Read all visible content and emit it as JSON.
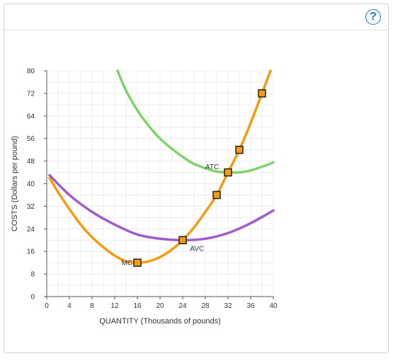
{
  "header": {
    "help_label": "?",
    "help_icon": "question-circle-icon"
  },
  "chart_data": {
    "type": "line",
    "xlabel": "QUANTITY (Thousands of pounds)",
    "ylabel": "COSTS (Dollars per pound)",
    "xlim": [
      0,
      40
    ],
    "ylim": [
      0,
      80
    ],
    "xticks": [
      0,
      4,
      8,
      12,
      16,
      20,
      24,
      28,
      32,
      36,
      40
    ],
    "yticks": [
      0,
      8,
      16,
      24,
      32,
      40,
      48,
      56,
      64,
      72,
      80
    ],
    "grid": true,
    "series": [
      {
        "name": "MC",
        "color": "#f39c12",
        "x": [
          0.5,
          2,
          4,
          6,
          8,
          10,
          12,
          14,
          16,
          18,
          20,
          22,
          24,
          26,
          28,
          30,
          32,
          34,
          36,
          38,
          39.5
        ],
        "y": [
          42,
          37,
          31,
          25.5,
          21,
          17.5,
          14.5,
          12.5,
          12,
          12.5,
          14,
          16.5,
          20,
          24.5,
          30,
          36,
          44,
          52,
          61.5,
          72,
          80
        ]
      },
      {
        "name": "AVC",
        "color": "#a05cc8",
        "x": [
          0.5,
          4,
          8,
          12,
          16,
          20,
          24,
          28,
          32,
          36,
          40
        ],
        "y": [
          43,
          36,
          30,
          25.5,
          22,
          20.5,
          20,
          20.5,
          22.5,
          26,
          30.5
        ]
      },
      {
        "name": "ATC",
        "color": "#7fd36a",
        "x": [
          12.5,
          14,
          16,
          18,
          20,
          22,
          24,
          26,
          28,
          30,
          32,
          34,
          36,
          38,
          40
        ],
        "y": [
          80,
          73,
          66,
          60.5,
          56,
          52.5,
          49.5,
          47,
          45.5,
          44.3,
          44,
          44,
          44.7,
          46,
          47.5
        ]
      }
    ],
    "points": [
      {
        "x": 16,
        "y": 12
      },
      {
        "x": 24,
        "y": 20
      },
      {
        "x": 30,
        "y": 36
      },
      {
        "x": 32,
        "y": 44
      },
      {
        "x": 34,
        "y": 52
      },
      {
        "x": 38,
        "y": 72
      }
    ],
    "point_color": "#f39c12",
    "labels": [
      {
        "text": "MC",
        "x": 13.2,
        "y": 12
      },
      {
        "text": "AVC",
        "x": 25.3,
        "y": 17
      },
      {
        "text": "ATC",
        "x": 28,
        "y": 46
      }
    ]
  }
}
